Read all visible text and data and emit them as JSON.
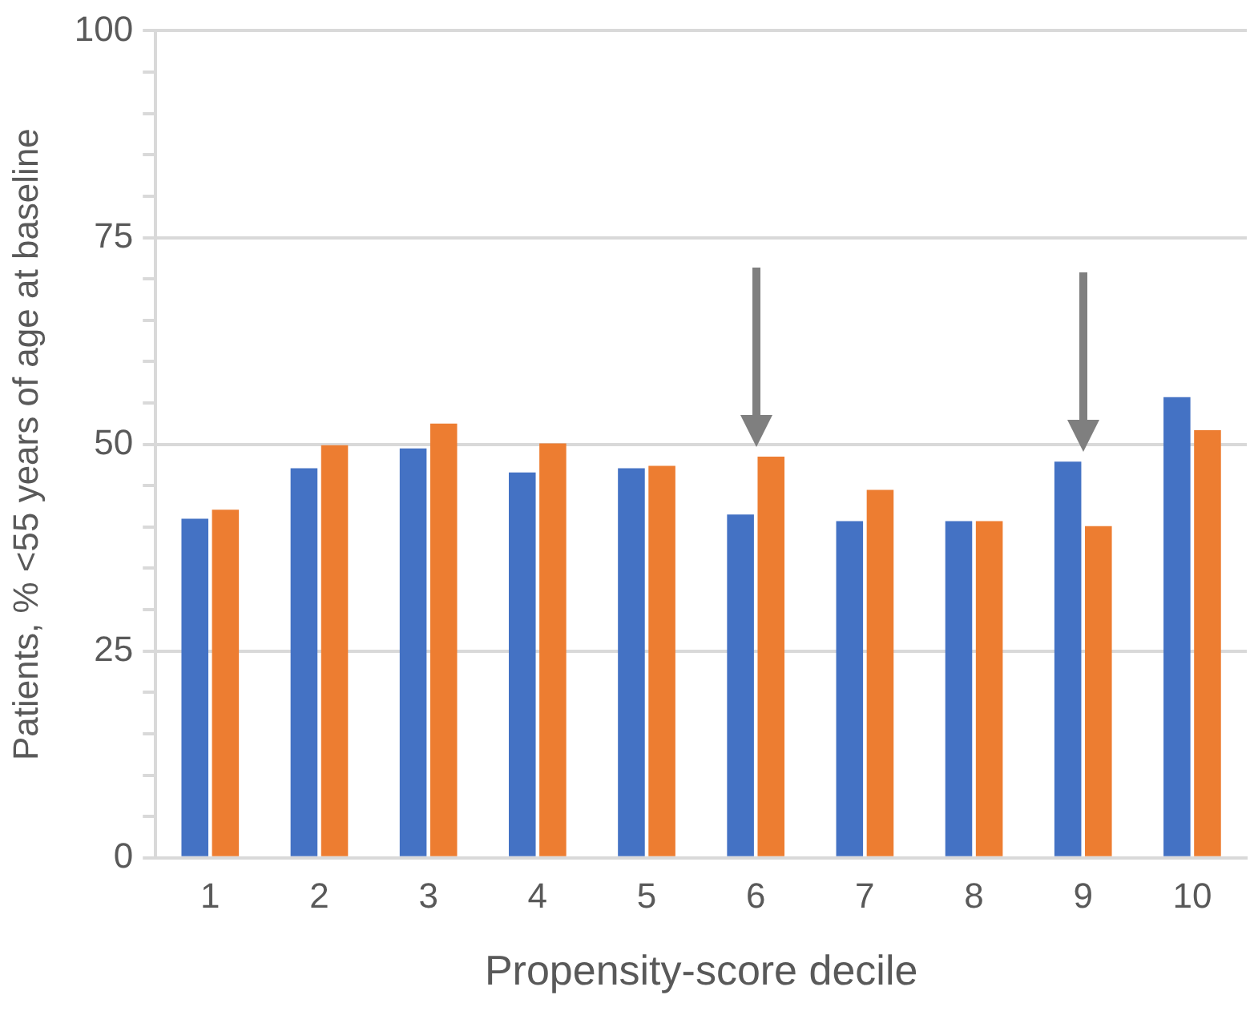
{
  "chart_data": {
    "type": "bar",
    "xlabel": "Propensity-score decile",
    "ylabel": "Patients, % <55 years of age at baseline",
    "categories": [
      "1",
      "2",
      "3",
      "4",
      "5",
      "6",
      "7",
      "8",
      "9",
      "10"
    ],
    "series": [
      {
        "color": "#4472c4",
        "values": [
          41.0,
          47.1,
          49.5,
          46.6,
          47.1,
          41.5,
          40.7,
          40.7,
          47.9,
          55.7
        ]
      },
      {
        "color": "#ed7d31",
        "values": [
          42.1,
          49.9,
          52.5,
          50.1,
          47.4,
          48.5,
          44.5,
          40.7,
          40.1,
          51.7
        ]
      }
    ],
    "ylim": [
      0,
      100
    ],
    "yticks": [
      0,
      {
        "value": 5,
        "label": null
      },
      {
        "value": 10,
        "label": null
      },
      {
        "value": 15,
        "label": null
      },
      {
        "value": 20,
        "label": null
      },
      25,
      {
        "value": 30,
        "label": null
      },
      {
        "value": 35,
        "label": null
      },
      {
        "value": 40,
        "label": null
      },
      {
        "value": 45,
        "label": null
      },
      50,
      {
        "value": 55,
        "label": null
      },
      {
        "value": 60,
        "label": null
      },
      {
        "value": 65,
        "label": null
      },
      {
        "value": 70,
        "label": null
      },
      75,
      {
        "value": 80,
        "label": null
      },
      {
        "value": 85,
        "label": null
      },
      {
        "value": 90,
        "label": null
      },
      {
        "value": 95,
        "label": null
      },
      100
    ],
    "grid": "y",
    "legend": false
  }
}
